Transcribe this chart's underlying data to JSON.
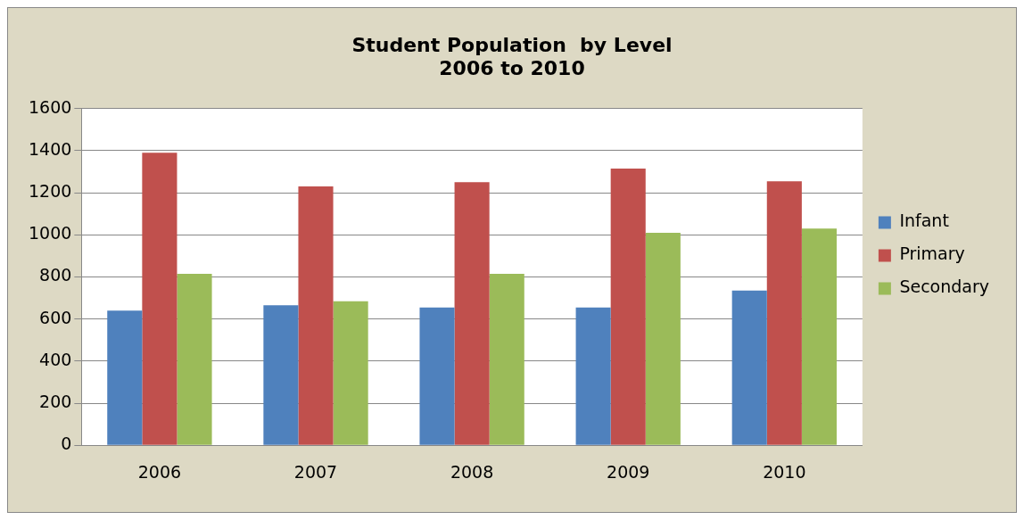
{
  "chart_data": {
    "type": "bar",
    "title": [
      "Student Population  by Level",
      "2006 to 2010"
    ],
    "categories": [
      "2006",
      "2007",
      "2008",
      "2009",
      "2010"
    ],
    "series": [
      {
        "name": "Infant",
        "color": "#4f81bd",
        "values": [
          640,
          665,
          655,
          655,
          735
        ]
      },
      {
        "name": "Primary",
        "color": "#c0504d",
        "values": [
          1390,
          1230,
          1250,
          1315,
          1255
        ]
      },
      {
        "name": "Secondary",
        "color": "#9bbb59",
        "values": [
          815,
          685,
          815,
          1010,
          1030
        ]
      }
    ],
    "ylim": [
      0,
      1600
    ],
    "yticks": [
      0,
      200,
      400,
      600,
      800,
      1000,
      1200,
      1400,
      1600
    ],
    "grid": "y",
    "legend": "right"
  }
}
